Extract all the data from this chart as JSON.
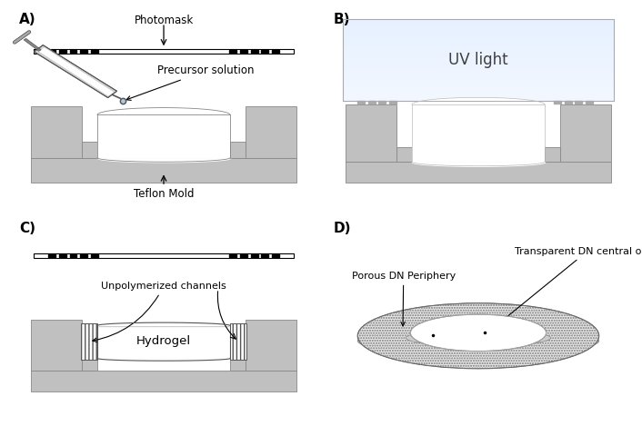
{
  "fig_width": 7.06,
  "fig_height": 4.69,
  "dpi": 100,
  "bg_color": "#ffffff",
  "gray_mold": "#c0c0c0",
  "panel_labels": [
    "A)",
    "B)",
    "C)",
    "D)"
  ],
  "panel_label_fontsize": 11,
  "annotation_fontsize": 8.5,
  "dot_left": [
    1.3,
    1.65,
    2.0,
    2.35,
    2.7
  ],
  "dot_right": [
    7.3,
    7.65,
    8.0,
    8.35,
    8.7
  ]
}
